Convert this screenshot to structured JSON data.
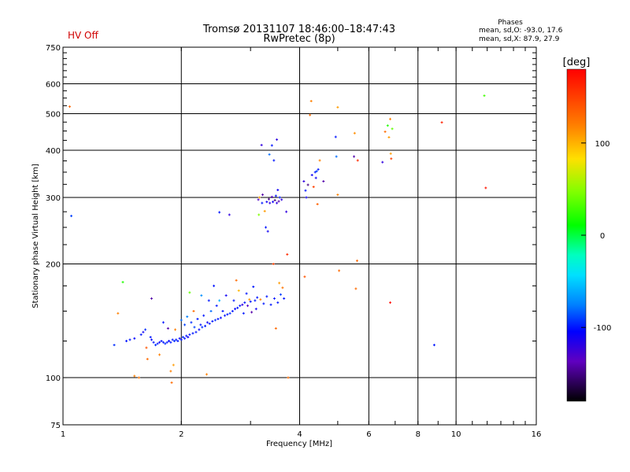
{
  "header": {
    "title_line1": "Tromsø 20131107 18:46:00–18:47:43",
    "title_line2": "RwPretec (8p)",
    "hv_status": "HV Off",
    "stats_title": "Phases",
    "stats_o": "mean, sd,O:  -93.0,  17.6",
    "stats_x": "mean, sd,X:   87.9,  27.9"
  },
  "colorbar": {
    "label": "[deg]",
    "range": [
      -180,
      180
    ],
    "ticks": [
      {
        "value": 100,
        "label": "100"
      },
      {
        "value": 0,
        "label": "0"
      },
      {
        "value": -100,
        "label": "-100"
      }
    ]
  },
  "chart_data": {
    "type": "scatter",
    "title": "Tromsø 20131107 18:46:00–18:47:43",
    "subtitle": "RwPretec (8p)",
    "xlabel": "Frequency [MHz]",
    "ylabel": "Stationary phase Virtual Height [km]",
    "xscale": "log",
    "yscale": "log",
    "xlim": [
      1,
      16
    ],
    "ylim": [
      75,
      750
    ],
    "grid": true,
    "xticks": [
      {
        "value": 1,
        "label": "1"
      },
      {
        "value": 2,
        "label": "2"
      },
      {
        "value": 4,
        "label": "4"
      },
      {
        "value": 6,
        "label": "6"
      },
      {
        "value": 8,
        "label": "8"
      },
      {
        "value": 10,
        "label": "10"
      },
      {
        "value": 16,
        "label": "16"
      }
    ],
    "xgrid": [
      2,
      4,
      6,
      8,
      10
    ],
    "yticks": [
      {
        "value": 75,
        "label": "75"
      },
      {
        "value": 100,
        "label": "100"
      },
      {
        "value": 200,
        "label": "200"
      },
      {
        "value": 300,
        "label": "300"
      },
      {
        "value": 400,
        "label": "400"
      },
      {
        "value": 500,
        "label": "500"
      },
      {
        "value": 600,
        "label": "600"
      },
      {
        "value": 750,
        "label": "750"
      }
    ],
    "ygrid": [
      100,
      200,
      300,
      400,
      500,
      600
    ],
    "points": [
      {
        "f": 1.04,
        "h": 522,
        "p": 130
      },
      {
        "f": 1.05,
        "h": 268,
        "p": -90
      },
      {
        "f": 1.35,
        "h": 122,
        "p": -95
      },
      {
        "f": 1.38,
        "h": 148,
        "p": 120
      },
      {
        "f": 1.42,
        "h": 179,
        "p": 20
      },
      {
        "f": 1.45,
        "h": 125,
        "p": -100
      },
      {
        "f": 1.48,
        "h": 126,
        "p": -100
      },
      {
        "f": 1.52,
        "h": 127,
        "p": -105
      },
      {
        "f": 1.52,
        "h": 101,
        "p": 120
      },
      {
        "f": 1.56,
        "h": 100,
        "p": 125
      },
      {
        "f": 1.58,
        "h": 130,
        "p": -100
      },
      {
        "f": 1.6,
        "h": 132,
        "p": -110
      },
      {
        "f": 1.62,
        "h": 134,
        "p": -95
      },
      {
        "f": 1.63,
        "h": 120,
        "p": 140
      },
      {
        "f": 1.64,
        "h": 112,
        "p": 130
      },
      {
        "f": 1.67,
        "h": 128,
        "p": -100
      },
      {
        "f": 1.68,
        "h": 162,
        "p": -140
      },
      {
        "f": 1.68,
        "h": 126,
        "p": -105
      },
      {
        "f": 1.7,
        "h": 124,
        "p": -100
      },
      {
        "f": 1.72,
        "h": 122,
        "p": -95
      },
      {
        "f": 1.74,
        "h": 123,
        "p": -100
      },
      {
        "f": 1.76,
        "h": 124,
        "p": -110
      },
      {
        "f": 1.76,
        "h": 115,
        "p": 120
      },
      {
        "f": 1.78,
        "h": 125,
        "p": -100
      },
      {
        "f": 1.8,
        "h": 124,
        "p": -100
      },
      {
        "f": 1.8,
        "h": 140,
        "p": -100
      },
      {
        "f": 1.82,
        "h": 123,
        "p": -95
      },
      {
        "f": 1.84,
        "h": 124,
        "p": -100
      },
      {
        "f": 1.85,
        "h": 135,
        "p": -140
      },
      {
        "f": 1.86,
        "h": 125,
        "p": -105
      },
      {
        "f": 1.88,
        "h": 124,
        "p": -100
      },
      {
        "f": 1.88,
        "h": 104,
        "p": 120
      },
      {
        "f": 1.89,
        "h": 97,
        "p": 130
      },
      {
        "f": 1.9,
        "h": 126,
        "p": -100
      },
      {
        "f": 1.91,
        "h": 108,
        "p": 110
      },
      {
        "f": 1.92,
        "h": 125,
        "p": -95
      },
      {
        "f": 1.93,
        "h": 134,
        "p": 120
      },
      {
        "f": 1.94,
        "h": 126,
        "p": -100
      },
      {
        "f": 1.96,
        "h": 125,
        "p": -100
      },
      {
        "f": 1.98,
        "h": 127,
        "p": -105
      },
      {
        "f": 2.0,
        "h": 126,
        "p": -100
      },
      {
        "f": 2.0,
        "h": 142,
        "p": -80
      },
      {
        "f": 2.02,
        "h": 128,
        "p": -95
      },
      {
        "f": 2.04,
        "h": 138,
        "p": -90
      },
      {
        "f": 2.04,
        "h": 127,
        "p": -100
      },
      {
        "f": 2.06,
        "h": 129,
        "p": -100
      },
      {
        "f": 2.07,
        "h": 145,
        "p": -75
      },
      {
        "f": 2.08,
        "h": 128,
        "p": -110
      },
      {
        "f": 2.1,
        "h": 130,
        "p": -100
      },
      {
        "f": 2.1,
        "h": 168,
        "p": 40
      },
      {
        "f": 2.12,
        "h": 140,
        "p": -95
      },
      {
        "f": 2.14,
        "h": 131,
        "p": -100
      },
      {
        "f": 2.15,
        "h": 150,
        "p": 130
      },
      {
        "f": 2.16,
        "h": 136,
        "p": -90
      },
      {
        "f": 2.18,
        "h": 132,
        "p": -100
      },
      {
        "f": 2.2,
        "h": 143,
        "p": -100
      },
      {
        "f": 2.22,
        "h": 134,
        "p": -105
      },
      {
        "f": 2.24,
        "h": 138,
        "p": -100
      },
      {
        "f": 2.25,
        "h": 165,
        "p": -70
      },
      {
        "f": 2.26,
        "h": 136,
        "p": -95
      },
      {
        "f": 2.28,
        "h": 146,
        "p": -100
      },
      {
        "f": 2.3,
        "h": 137,
        "p": -100
      },
      {
        "f": 2.32,
        "h": 102,
        "p": 120
      },
      {
        "f": 2.33,
        "h": 140,
        "p": -110
      },
      {
        "f": 2.35,
        "h": 160,
        "p": -100
      },
      {
        "f": 2.36,
        "h": 139,
        "p": -100
      },
      {
        "f": 2.38,
        "h": 150,
        "p": -80
      },
      {
        "f": 2.4,
        "h": 141,
        "p": -100
      },
      {
        "f": 2.42,
        "h": 175,
        "p": -100
      },
      {
        "f": 2.44,
        "h": 142,
        "p": -95
      },
      {
        "f": 2.46,
        "h": 155,
        "p": -100
      },
      {
        "f": 2.48,
        "h": 143,
        "p": -100
      },
      {
        "f": 2.5,
        "h": 274,
        "p": -100
      },
      {
        "f": 2.5,
        "h": 160,
        "p": -60
      },
      {
        "f": 2.52,
        "h": 144,
        "p": -105
      },
      {
        "f": 2.55,
        "h": 150,
        "p": -100
      },
      {
        "f": 2.58,
        "h": 146,
        "p": -100
      },
      {
        "f": 2.6,
        "h": 165,
        "p": -110
      },
      {
        "f": 2.62,
        "h": 147,
        "p": -100
      },
      {
        "f": 2.65,
        "h": 270,
        "p": -120
      },
      {
        "f": 2.66,
        "h": 148,
        "p": -95
      },
      {
        "f": 2.7,
        "h": 150,
        "p": -100
      },
      {
        "f": 2.72,
        "h": 160,
        "p": -100
      },
      {
        "f": 2.74,
        "h": 152,
        "p": -105
      },
      {
        "f": 2.76,
        "h": 181,
        "p": 130
      },
      {
        "f": 2.78,
        "h": 153,
        "p": -100
      },
      {
        "f": 2.8,
        "h": 170,
        "p": 100
      },
      {
        "f": 2.82,
        "h": 155,
        "p": -100
      },
      {
        "f": 2.86,
        "h": 156,
        "p": -120
      },
      {
        "f": 2.88,
        "h": 148,
        "p": -100
      },
      {
        "f": 2.9,
        "h": 158,
        "p": -100
      },
      {
        "f": 2.93,
        "h": 167,
        "p": -100
      },
      {
        "f": 2.95,
        "h": 155,
        "p": -130
      },
      {
        "f": 2.98,
        "h": 161,
        "p": 110
      },
      {
        "f": 3.0,
        "h": 159,
        "p": -100
      },
      {
        "f": 3.02,
        "h": 149,
        "p": -140
      },
      {
        "f": 3.05,
        "h": 174,
        "p": -100
      },
      {
        "f": 3.08,
        "h": 160,
        "p": -100
      },
      {
        "f": 3.1,
        "h": 152,
        "p": -110
      },
      {
        "f": 3.12,
        "h": 163,
        "p": -100
      },
      {
        "f": 3.14,
        "h": 296,
        "p": -130
      },
      {
        "f": 3.15,
        "h": 270,
        "p": 50
      },
      {
        "f": 3.16,
        "h": 300,
        "p": 110
      },
      {
        "f": 3.18,
        "h": 161,
        "p": 120
      },
      {
        "f": 3.2,
        "h": 413,
        "p": -120
      },
      {
        "f": 3.21,
        "h": 290,
        "p": -100
      },
      {
        "f": 3.22,
        "h": 305,
        "p": -140
      },
      {
        "f": 3.24,
        "h": 157,
        "p": -100
      },
      {
        "f": 3.26,
        "h": 276,
        "p": 110
      },
      {
        "f": 3.28,
        "h": 250,
        "p": -100
      },
      {
        "f": 3.3,
        "h": 292,
        "p": -110
      },
      {
        "f": 3.3,
        "h": 164,
        "p": -100
      },
      {
        "f": 3.32,
        "h": 244,
        "p": -110
      },
      {
        "f": 3.34,
        "h": 297,
        "p": -150
      },
      {
        "f": 3.35,
        "h": 390,
        "p": -80
      },
      {
        "f": 3.36,
        "h": 290,
        "p": -120
      },
      {
        "f": 3.38,
        "h": 156,
        "p": -100
      },
      {
        "f": 3.4,
        "h": 301,
        "p": -130
      },
      {
        "f": 3.4,
        "h": 412,
        "p": -100
      },
      {
        "f": 3.42,
        "h": 292,
        "p": -110
      },
      {
        "f": 3.43,
        "h": 200,
        "p": 150
      },
      {
        "f": 3.44,
        "h": 376,
        "p": -100
      },
      {
        "f": 3.45,
        "h": 162,
        "p": -100
      },
      {
        "f": 3.46,
        "h": 295,
        "p": -150
      },
      {
        "f": 3.48,
        "h": 303,
        "p": -100
      },
      {
        "f": 3.48,
        "h": 135,
        "p": 130
      },
      {
        "f": 3.5,
        "h": 290,
        "p": -120
      },
      {
        "f": 3.5,
        "h": 427,
        "p": -120
      },
      {
        "f": 3.52,
        "h": 314,
        "p": -110
      },
      {
        "f": 3.52,
        "h": 158,
        "p": -100
      },
      {
        "f": 3.54,
        "h": 293,
        "p": -140
      },
      {
        "f": 3.55,
        "h": 178,
        "p": 110
      },
      {
        "f": 3.56,
        "h": 300,
        "p": -100
      },
      {
        "f": 3.58,
        "h": 166,
        "p": -90
      },
      {
        "f": 3.6,
        "h": 296,
        "p": -120
      },
      {
        "f": 3.62,
        "h": 173,
        "p": 125
      },
      {
        "f": 3.65,
        "h": 162,
        "p": -100
      },
      {
        "f": 3.7,
        "h": 275,
        "p": -120
      },
      {
        "f": 3.72,
        "h": 212,
        "p": 160
      },
      {
        "f": 3.74,
        "h": 100,
        "p": 130
      },
      {
        "f": 4.1,
        "h": 331,
        "p": -120
      },
      {
        "f": 4.12,
        "h": 185,
        "p": 140
      },
      {
        "f": 4.14,
        "h": 313,
        "p": -100
      },
      {
        "f": 4.16,
        "h": 300,
        "p": -110
      },
      {
        "f": 4.2,
        "h": 324,
        "p": -150
      },
      {
        "f": 4.25,
        "h": 496,
        "p": 130
      },
      {
        "f": 4.28,
        "h": 540,
        "p": 120
      },
      {
        "f": 4.3,
        "h": 344,
        "p": -110
      },
      {
        "f": 4.34,
        "h": 320,
        "p": 150
      },
      {
        "f": 4.38,
        "h": 350,
        "p": -100
      },
      {
        "f": 4.4,
        "h": 338,
        "p": -110
      },
      {
        "f": 4.42,
        "h": 352,
        "p": -90
      },
      {
        "f": 4.44,
        "h": 288,
        "p": 135
      },
      {
        "f": 4.46,
        "h": 356,
        "p": -100
      },
      {
        "f": 4.5,
        "h": 376,
        "p": 120
      },
      {
        "f": 4.6,
        "h": 331,
        "p": -140
      },
      {
        "f": 4.94,
        "h": 434,
        "p": -100
      },
      {
        "f": 4.96,
        "h": 385,
        "p": -80
      },
      {
        "f": 5.0,
        "h": 305,
        "p": 120
      },
      {
        "f": 5.0,
        "h": 520,
        "p": 110
      },
      {
        "f": 5.04,
        "h": 192,
        "p": 130
      },
      {
        "f": 5.5,
        "h": 385,
        "p": -140
      },
      {
        "f": 5.52,
        "h": 444,
        "p": 115
      },
      {
        "f": 5.56,
        "h": 172,
        "p": 130
      },
      {
        "f": 5.6,
        "h": 204,
        "p": 130
      },
      {
        "f": 5.62,
        "h": 376,
        "p": 160
      },
      {
        "f": 6.5,
        "h": 372,
        "p": -120
      },
      {
        "f": 6.6,
        "h": 448,
        "p": 130
      },
      {
        "f": 6.7,
        "h": 465,
        "p": 20
      },
      {
        "f": 6.75,
        "h": 433,
        "p": 110
      },
      {
        "f": 6.8,
        "h": 484,
        "p": 120
      },
      {
        "f": 6.8,
        "h": 158,
        "p": 175
      },
      {
        "f": 6.82,
        "h": 392,
        "p": 110
      },
      {
        "f": 6.84,
        "h": 380,
        "p": 150
      },
      {
        "f": 6.88,
        "h": 456,
        "p": 40
      },
      {
        "f": 8.8,
        "h": 122,
        "p": -100
      },
      {
        "f": 9.2,
        "h": 474,
        "p": 165
      },
      {
        "f": 11.8,
        "h": 558,
        "p": 30
      },
      {
        "f": 11.9,
        "h": 318,
        "p": 170
      }
    ]
  }
}
